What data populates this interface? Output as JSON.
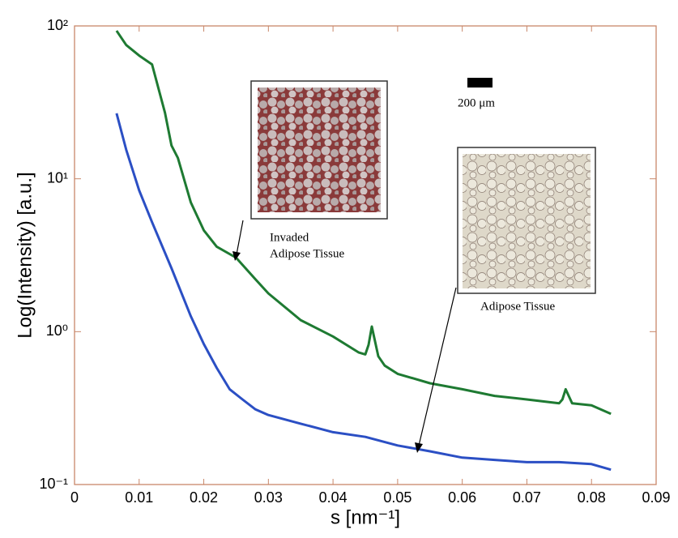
{
  "chart_data": {
    "type": "line",
    "xlabel": "s [nm⁻¹]",
    "ylabel": "Log(Intensity) [a.u.]",
    "xlim": [
      0,
      0.09
    ],
    "xticks": [
      0,
      0.01,
      0.02,
      0.03,
      0.04,
      0.05,
      0.06,
      0.07,
      0.08,
      0.09
    ],
    "ylim": [
      0.1,
      100
    ],
    "yscale": "log",
    "yticks": [
      {
        "value": 0.1,
        "label": "10⁻¹"
      },
      {
        "value": 1,
        "label": "10⁰"
      },
      {
        "value": 10,
        "label": "10¹"
      },
      {
        "value": 100,
        "label": "10²"
      }
    ],
    "series": [
      {
        "name": "Invaded Adipose Tissue",
        "color": "#1e7a32",
        "x": [
          0.0065,
          0.008,
          0.01,
          0.012,
          0.014,
          0.015,
          0.016,
          0.018,
          0.02,
          0.022,
          0.025,
          0.028,
          0.03,
          0.035,
          0.04,
          0.044,
          0.045,
          0.0455,
          0.046,
          0.047,
          0.048,
          0.05,
          0.055,
          0.06,
          0.065,
          0.07,
          0.075,
          0.0755,
          0.076,
          0.077,
          0.08,
          0.083
        ],
        "values": [
          93,
          75,
          64,
          56,
          27,
          16.5,
          13.7,
          7,
          4.6,
          3.6,
          3.05,
          2.2,
          1.78,
          1.19,
          0.93,
          0.73,
          0.71,
          0.82,
          1.08,
          0.69,
          0.6,
          0.53,
          0.46,
          0.42,
          0.38,
          0.36,
          0.34,
          0.36,
          0.42,
          0.34,
          0.33,
          0.29
        ]
      },
      {
        "name": "Adipose Tissue",
        "color": "#2b4fc4",
        "x": [
          0.0065,
          0.008,
          0.01,
          0.012,
          0.015,
          0.018,
          0.02,
          0.022,
          0.024,
          0.026,
          0.028,
          0.03,
          0.035,
          0.04,
          0.045,
          0.05,
          0.055,
          0.06,
          0.065,
          0.07,
          0.075,
          0.08,
          0.083
        ],
        "values": [
          26.8,
          15.5,
          8.4,
          5.2,
          2.6,
          1.26,
          0.83,
          0.58,
          0.42,
          0.36,
          0.31,
          0.285,
          0.25,
          0.22,
          0.205,
          0.18,
          0.165,
          0.15,
          0.145,
          0.14,
          0.14,
          0.136,
          0.125
        ]
      }
    ],
    "annotations": [
      "Invaded",
      "Adipose Tissue",
      "Adipose Tissue",
      "200 μm"
    ]
  }
}
